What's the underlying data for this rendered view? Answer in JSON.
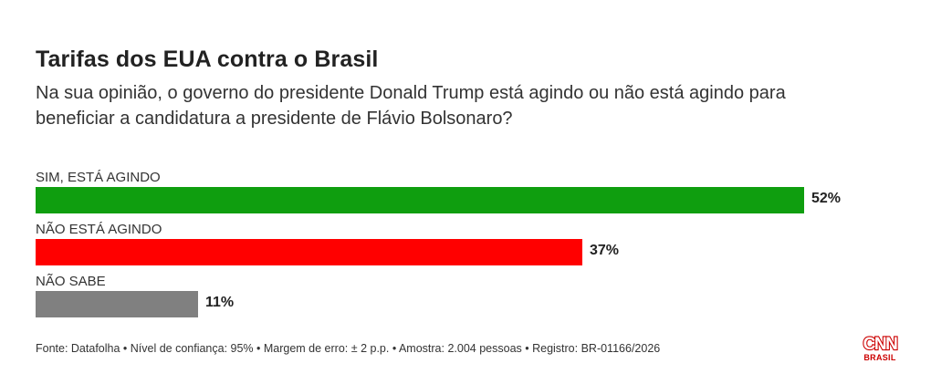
{
  "title": "Tarifas dos EUA contra o Brasil",
  "subtitle": "Na sua opinião, o governo do presidente Donald Trump está agindo ou não está agindo para beneficiar a candidatura a presidente de Flávio Bolsonaro?",
  "footer": "Fonte: Datafolha • Nível de confiança: 95% • Margem de erro: ± 2 p.p. • Amostra: 2.004 pessoas • Registro: BR-01166/2026",
  "logo": {
    "text": "CNN",
    "sub": "BRASIL",
    "color": "#cc0000"
  },
  "chart_data": {
    "type": "bar",
    "orientation": "horizontal",
    "categories": [
      "SIM, ESTÁ AGINDO",
      "NÃO ESTÁ AGINDO",
      "NÃO SABE"
    ],
    "values": [
      52,
      37,
      11
    ],
    "value_labels": [
      "52%",
      "37%",
      "11%"
    ],
    "colors": [
      "#0f9e0f",
      "#ff0000",
      "#808080"
    ],
    "unit": "%",
    "grid": false,
    "legend": "none"
  }
}
